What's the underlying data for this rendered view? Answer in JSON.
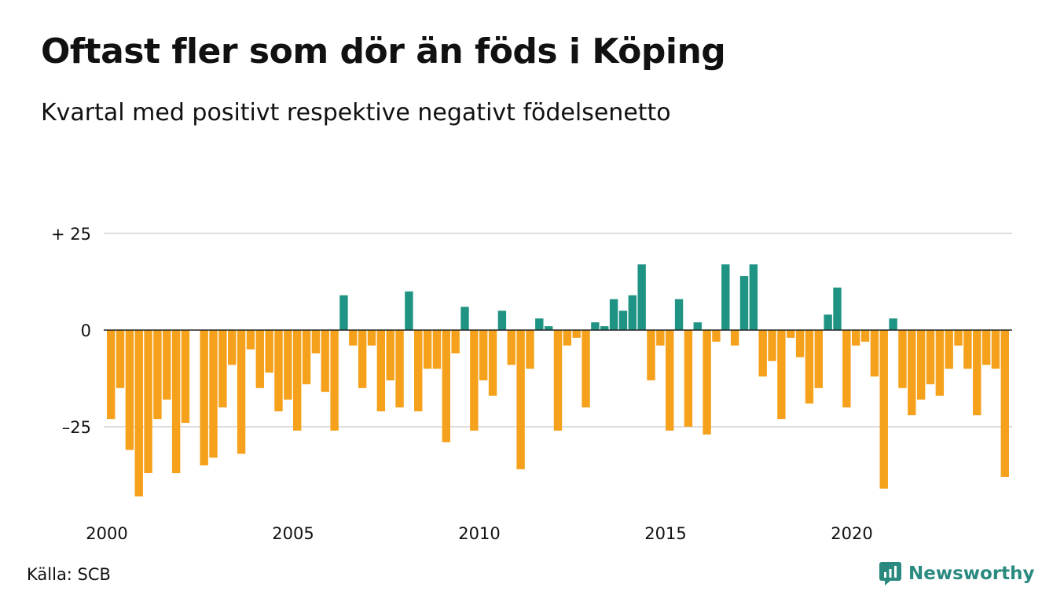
{
  "title": "Oftast fler som dör än föds i Köping",
  "subtitle": "Kvartal med positivt respektive negativt födelsenetto",
  "source": "Källa: SCB",
  "brand": {
    "name": "Newsworthy",
    "icon": "newsworthy-logo-icon"
  },
  "colors": {
    "positive": "#1f9384",
    "negative": "#f5a11b",
    "grid": "#dddddd",
    "zero": "#222222"
  },
  "chart_data": {
    "type": "bar",
    "x_unit": "quarter",
    "x_start": "2000 Q1",
    "values": [
      -23,
      -15,
      -31,
      -43,
      -37,
      -23,
      -18,
      -37,
      -24,
      0,
      -35,
      -33,
      -20,
      -9,
      -32,
      -5,
      -15,
      -11,
      -21,
      -18,
      -26,
      -14,
      -6,
      -16,
      -26,
      9,
      -4,
      -15,
      -4,
      -21,
      -13,
      -20,
      10,
      -21,
      -10,
      -10,
      -29,
      -6,
      6,
      -26,
      -13,
      -17,
      5,
      -9,
      -36,
      -10,
      3,
      1,
      -26,
      -4,
      -2,
      -20,
      2,
      1,
      8,
      5,
      9,
      17,
      -13,
      -4,
      -26,
      8,
      -25,
      2,
      -27,
      -3,
      17,
      -4,
      14,
      17,
      -12,
      -8,
      -23,
      -2,
      -7,
      -19,
      -15,
      4,
      11,
      -20,
      -4,
      -3,
      -12,
      -41,
      3,
      -15,
      -22,
      -18,
      -14,
      -17,
      -10,
      -4,
      -10,
      -22,
      -9,
      -10,
      -38
    ],
    "ylim": [
      -45,
      25
    ],
    "yticks": [
      {
        "value": 25,
        "label": "+ 25"
      },
      {
        "value": 0,
        "label": "0"
      },
      {
        "value": -25,
        "label": "–25"
      }
    ],
    "xticks": [
      {
        "year": 2000,
        "label": "2000"
      },
      {
        "year": 2005,
        "label": "2005"
      },
      {
        "year": 2010,
        "label": "2010"
      },
      {
        "year": 2015,
        "label": "2015"
      },
      {
        "year": 2020,
        "label": "2020"
      }
    ],
    "grid": true
  }
}
